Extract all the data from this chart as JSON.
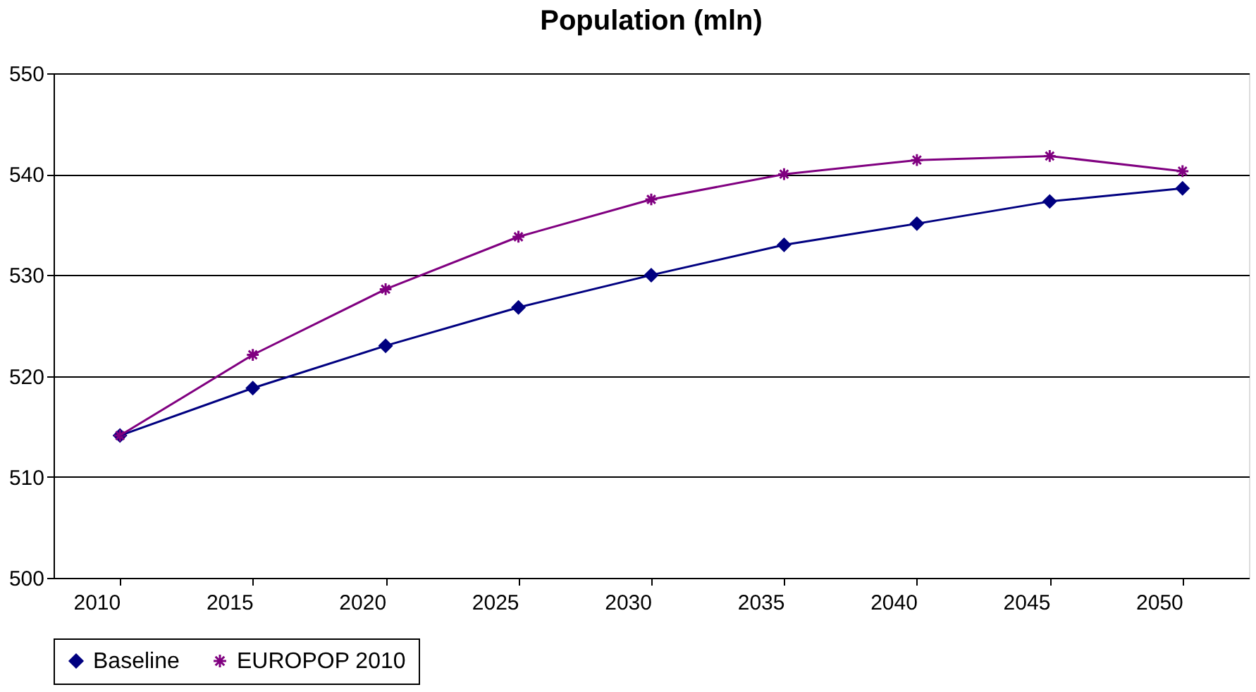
{
  "chart_data": {
    "type": "line",
    "title": "Population (mln)",
    "categories": [
      "2010",
      "2015",
      "2020",
      "2025",
      "2030",
      "2035",
      "2040",
      "2045",
      "2050"
    ],
    "series": [
      {
        "name": "Baseline",
        "color": "#000080",
        "marker": "diamond",
        "values": [
          514.1,
          518.8,
          523.0,
          526.8,
          530.0,
          533.0,
          535.1,
          537.3,
          538.6
        ]
      },
      {
        "name": "EUROPOP 2010",
        "color": "#800080",
        "marker": "cross",
        "values": [
          514.1,
          522.1,
          528.6,
          533.8,
          537.5,
          540.0,
          541.4,
          541.8,
          540.3
        ]
      }
    ],
    "ylim": [
      500,
      550
    ],
    "yticks": [
      500,
      510,
      520,
      530,
      540,
      550
    ],
    "grid": "y",
    "legend": "bottom",
    "line_style": "solid"
  }
}
